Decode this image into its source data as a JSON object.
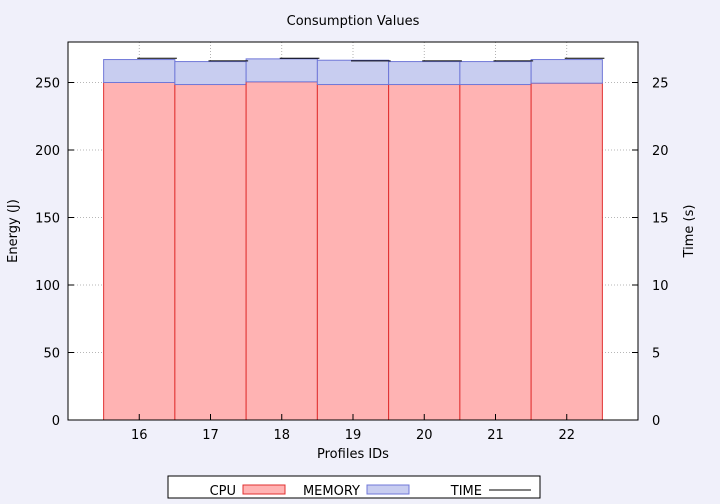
{
  "chart_data": {
    "type": "bar",
    "title": "Consumption Values",
    "xlabel": "Profiles IDs",
    "ylabel": "Energy (J)",
    "y2label": "Time (s)",
    "categories": [
      "16",
      "17",
      "18",
      "19",
      "20",
      "21",
      "22"
    ],
    "ylim": [
      0,
      280
    ],
    "y2lim": [
      0,
      28
    ],
    "yticks": [
      "0",
      "50",
      "100",
      "150",
      "200",
      "250"
    ],
    "y2ticks": [
      "0",
      "5",
      "10",
      "15",
      "20",
      "25"
    ],
    "grid": true,
    "legend_position": "bottom",
    "stacked": true,
    "series": [
      {
        "name": "CPU",
        "axis": "y1",
        "color": "#ffb3b3",
        "stroke": "#e03030",
        "values": [
          250,
          248.5,
          250.5,
          248.5,
          248.5,
          248.5,
          249.5
        ]
      },
      {
        "name": "MEMORY",
        "axis": "y1",
        "color": "#c8cdf0",
        "stroke": "#7078d8",
        "values": [
          17,
          17,
          17,
          18,
          17,
          17,
          17.5
        ]
      },
      {
        "name": "TIME",
        "axis": "y2",
        "color": "#000000",
        "values": [
          26.8,
          26.6,
          26.8,
          26.6,
          26.6,
          26.6,
          26.8
        ]
      }
    ]
  }
}
